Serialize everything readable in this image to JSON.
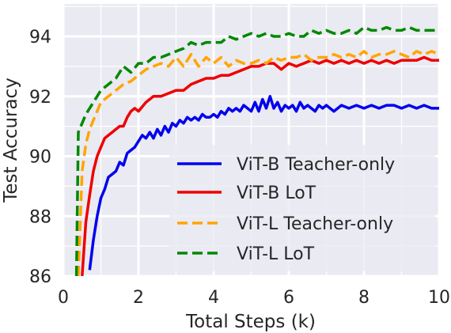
{
  "chart_data": {
    "type": "line",
    "title": "",
    "xlabel": "Total Steps (k)",
    "ylabel": "Test Accuracy",
    "xlim": [
      0,
      10
    ],
    "ylim": [
      86,
      95
    ],
    "xticks": [
      0,
      2,
      4,
      6,
      8,
      10
    ],
    "yticks": [
      86,
      88,
      90,
      92,
      94
    ],
    "grid": true,
    "legend_position": "lower-right",
    "series": [
      {
        "name": "ViT-B Teacher-only",
        "color": "#0000ee",
        "dash": "solid",
        "x": [
          0.7,
          0.8,
          0.9,
          1.0,
          1.1,
          1.2,
          1.3,
          1.4,
          1.5,
          1.6,
          1.7,
          1.8,
          1.9,
          2.0,
          2.1,
          2.2,
          2.3,
          2.4,
          2.5,
          2.6,
          2.7,
          2.8,
          2.9,
          3.0,
          3.1,
          3.2,
          3.3,
          3.4,
          3.5,
          3.6,
          3.7,
          3.8,
          3.9,
          4.0,
          4.1,
          4.2,
          4.3,
          4.4,
          4.5,
          4.6,
          4.7,
          4.8,
          4.9,
          5.0,
          5.1,
          5.2,
          5.3,
          5.4,
          5.5,
          5.6,
          5.7,
          5.8,
          5.9,
          6.0,
          6.1,
          6.2,
          6.3,
          6.4,
          6.5,
          6.6,
          6.7,
          6.8,
          6.9,
          7.0,
          7.2,
          7.4,
          7.6,
          7.8,
          8.0,
          8.2,
          8.4,
          8.6,
          8.8,
          9.0,
          9.2,
          9.4,
          9.6,
          9.8,
          10.0
        ],
        "y": [
          86.2,
          87.2,
          88.0,
          88.6,
          88.9,
          89.3,
          89.4,
          89.5,
          89.8,
          89.7,
          90.1,
          90.2,
          90.3,
          90.5,
          90.7,
          90.6,
          90.8,
          90.6,
          90.9,
          90.7,
          91.0,
          90.8,
          91.1,
          91.0,
          91.2,
          91.1,
          91.3,
          91.2,
          91.3,
          91.2,
          91.4,
          91.3,
          91.3,
          91.4,
          91.3,
          91.5,
          91.4,
          91.6,
          91.5,
          91.6,
          91.5,
          91.7,
          91.6,
          91.5,
          91.8,
          91.5,
          91.9,
          91.6,
          92.0,
          91.6,
          91.8,
          91.5,
          91.7,
          91.6,
          91.7,
          91.5,
          91.8,
          91.6,
          91.7,
          91.6,
          91.5,
          91.7,
          91.6,
          91.7,
          91.5,
          91.7,
          91.6,
          91.7,
          91.6,
          91.7,
          91.6,
          91.7,
          91.7,
          91.6,
          91.7,
          91.6,
          91.7,
          91.6,
          91.6
        ]
      },
      {
        "name": "ViT-B LoT",
        "color": "#ee0000",
        "dash": "solid",
        "x": [
          0.5,
          0.6,
          0.7,
          0.8,
          0.9,
          1.0,
          1.1,
          1.2,
          1.3,
          1.4,
          1.5,
          1.6,
          1.7,
          1.8,
          1.9,
          2.0,
          2.2,
          2.4,
          2.6,
          2.8,
          3.0,
          3.2,
          3.4,
          3.6,
          3.8,
          4.0,
          4.2,
          4.4,
          4.6,
          4.8,
          5.0,
          5.2,
          5.4,
          5.6,
          5.8,
          6.0,
          6.2,
          6.4,
          6.6,
          6.8,
          7.0,
          7.2,
          7.4,
          7.6,
          7.8,
          8.0,
          8.2,
          8.4,
          8.6,
          8.8,
          9.0,
          9.2,
          9.4,
          9.6,
          9.8,
          10.0
        ],
        "y": [
          86.0,
          87.8,
          88.7,
          89.5,
          90.0,
          90.3,
          90.6,
          90.7,
          90.8,
          90.9,
          91.0,
          91.0,
          91.3,
          91.5,
          91.6,
          91.5,
          91.8,
          92.0,
          92.0,
          92.1,
          92.2,
          92.2,
          92.4,
          92.5,
          92.6,
          92.6,
          92.7,
          92.7,
          92.8,
          92.9,
          93.0,
          93.0,
          93.1,
          93.1,
          92.9,
          93.1,
          93.0,
          93.1,
          93.2,
          93.1,
          93.2,
          93.1,
          93.2,
          93.1,
          93.2,
          93.1,
          93.2,
          93.1,
          93.2,
          93.1,
          93.2,
          93.2,
          93.2,
          93.3,
          93.2,
          93.2
        ]
      },
      {
        "name": "ViT-L Teacher-only",
        "color": "#ffa500",
        "dash": "dashed",
        "x": [
          0.4,
          0.5,
          0.6,
          0.7,
          0.8,
          0.9,
          1.0,
          1.2,
          1.4,
          1.6,
          1.8,
          2.0,
          2.2,
          2.4,
          2.6,
          2.8,
          3.0,
          3.2,
          3.4,
          3.6,
          3.8,
          4.0,
          4.2,
          4.4,
          4.6,
          4.8,
          5.0,
          5.2,
          5.4,
          5.6,
          5.8,
          6.0,
          6.2,
          6.4,
          6.6,
          6.8,
          7.0,
          7.2,
          7.4,
          7.6,
          7.8,
          8.0,
          8.2,
          8.4,
          8.6,
          8.8,
          9.0,
          9.2,
          9.4,
          9.6,
          9.8,
          10.0
        ],
        "y": [
          86.0,
          89.5,
          90.4,
          90.9,
          91.2,
          91.5,
          91.8,
          92.0,
          92.2,
          92.4,
          92.5,
          92.7,
          92.9,
          93.0,
          93.1,
          93.0,
          93.3,
          93.0,
          93.4,
          93.0,
          93.3,
          93.1,
          93.3,
          93.0,
          93.2,
          93.1,
          93.1,
          93.2,
          93.1,
          93.3,
          93.2,
          93.3,
          93.3,
          93.4,
          93.2,
          93.3,
          93.3,
          93.4,
          93.3,
          93.4,
          93.3,
          93.5,
          93.3,
          93.4,
          93.4,
          93.5,
          93.4,
          93.3,
          93.5,
          93.4,
          93.5,
          93.4
        ]
      },
      {
        "name": "ViT-L LoT",
        "color": "#008800",
        "dash": "dashed",
        "x": [
          0.35,
          0.4,
          0.5,
          0.6,
          0.7,
          0.8,
          0.9,
          1.0,
          1.2,
          1.4,
          1.6,
          1.8,
          2.0,
          2.2,
          2.4,
          2.6,
          2.8,
          3.0,
          3.2,
          3.4,
          3.6,
          3.8,
          4.0,
          4.2,
          4.4,
          4.6,
          4.8,
          5.0,
          5.2,
          5.4,
          5.6,
          5.8,
          6.0,
          6.2,
          6.4,
          6.6,
          6.8,
          7.0,
          7.2,
          7.4,
          7.6,
          7.8,
          8.0,
          8.2,
          8.4,
          8.6,
          8.8,
          9.0,
          9.2,
          9.4,
          9.6,
          9.8,
          10.0
        ],
        "y": [
          86.0,
          90.8,
          91.1,
          91.4,
          91.6,
          91.8,
          92.0,
          92.2,
          92.4,
          92.6,
          93.0,
          92.8,
          93.1,
          93.1,
          93.3,
          93.3,
          93.4,
          93.5,
          93.6,
          93.8,
          93.7,
          93.8,
          93.8,
          93.8,
          94.0,
          93.9,
          94.0,
          94.1,
          94.0,
          94.1,
          94.0,
          94.0,
          94.1,
          94.0,
          94.0,
          94.2,
          94.1,
          94.2,
          94.1,
          94.1,
          94.2,
          94.1,
          94.3,
          94.2,
          94.2,
          94.3,
          94.2,
          94.2,
          94.3,
          94.2,
          94.2,
          94.2,
          94.2
        ]
      }
    ]
  }
}
